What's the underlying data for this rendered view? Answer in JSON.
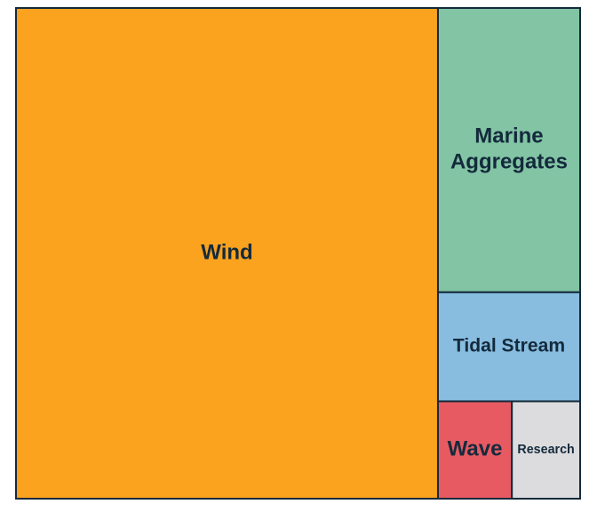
{
  "chart_data": {
    "type": "treemap",
    "categories": [
      "Wind",
      "Marine Aggregates",
      "Tidal Stream",
      "Wave",
      "Research"
    ],
    "values": [
      74.8,
      14.6,
      5.6,
      2.6,
      2.4
    ],
    "colors": [
      "#fba21e",
      "#82c4a4",
      "#88bde0",
      "#e85a62",
      "#dcdcde"
    ]
  }
}
